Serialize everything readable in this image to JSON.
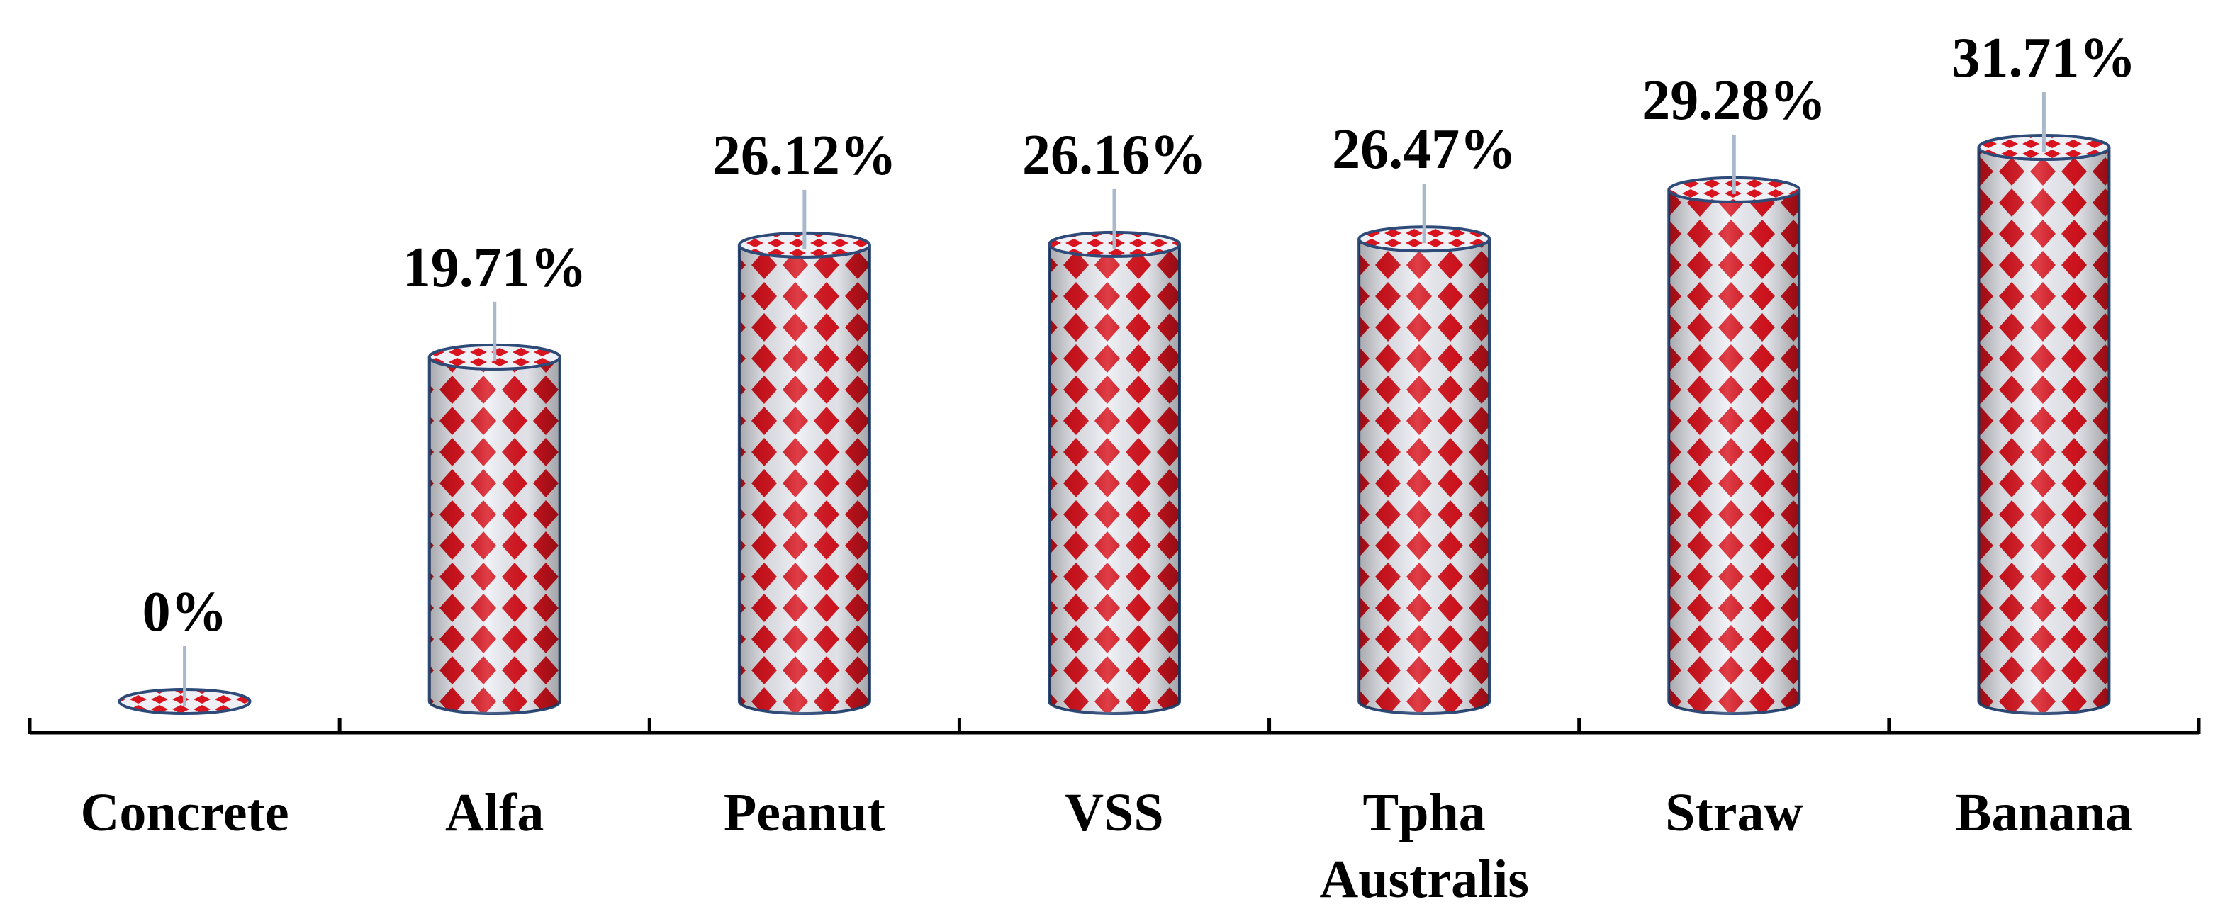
{
  "chart_data": {
    "type": "bar",
    "categories": [
      "Concrete",
      "Alfa",
      "Peanut",
      "VSS",
      "Tpha Australis",
      "Straw",
      "Banana"
    ],
    "category_label_lines": [
      [
        "Concrete"
      ],
      [
        "Alfa"
      ],
      [
        "Peanut"
      ],
      [
        "VSS"
      ],
      [
        "Tpha",
        "Australis"
      ],
      [
        "Straw"
      ],
      [
        "Banana"
      ]
    ],
    "values": [
      0,
      19.71,
      26.12,
      26.16,
      26.47,
      29.28,
      31.71
    ],
    "data_labels": [
      "0%",
      "19.71%",
      "26.12%",
      "26.16%",
      "26.47%",
      "29.28%",
      "31.71%"
    ],
    "ylim": [
      0,
      33
    ],
    "title": "",
    "xlabel": "",
    "ylabel": "",
    "grid": false,
    "legend": "none"
  },
  "colors": {
    "pattern_red": "#d9141f",
    "pattern_light": "#eef0f6",
    "outline": "#2e4a78",
    "axis": "#000000",
    "leader": "#aab8cc"
  }
}
